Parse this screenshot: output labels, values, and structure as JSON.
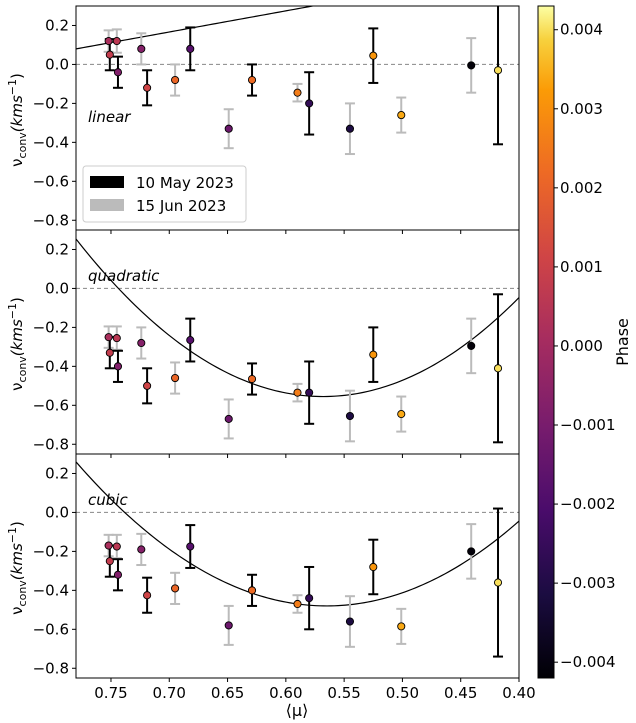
{
  "chart_data": {
    "type": "scatter",
    "x_axis": {
      "label": "⟨μ⟩",
      "range": [
        0.78,
        0.4
      ],
      "inverted": true,
      "ticks": [
        0.75,
        0.7,
        0.65,
        0.6,
        0.55,
        0.5,
        0.45,
        0.4
      ],
      "tick_labels": [
        "0.75",
        "0.70",
        "0.65",
        "0.60",
        "0.55",
        "0.50",
        "0.45",
        "0.40"
      ]
    },
    "y_axis": {
      "label_main": "ν",
      "label_sub": "conv",
      "label_unit": "(kms",
      "label_exp": "−1",
      "label_close": ")",
      "range": [
        -0.85,
        0.3
      ],
      "ticks": [
        0.2,
        0.0,
        -0.2,
        -0.4,
        -0.6,
        -0.8
      ],
      "tick_labels": [
        "0.2",
        "0.0",
        "−0.2",
        "−0.4",
        "−0.6",
        "−0.8"
      ]
    },
    "legend": {
      "placement": "lower-left of top panel",
      "entries": [
        {
          "label": "10 May 2023",
          "color": "#000000"
        },
        {
          "label": "15 Jun 2023",
          "color": "#bbbbbb"
        }
      ]
    },
    "colorbar": {
      "label": "Phase",
      "colormap": "inferno",
      "range": [
        -0.0042,
        0.0043
      ],
      "ticks": [
        0.004,
        0.003,
        0.002,
        0.001,
        0.0,
        -0.001,
        -0.002,
        -0.003,
        -0.004
      ],
      "tick_labels": [
        "0.004",
        "0.003",
        "0.002",
        "0.001",
        "0.000",
        "−0.001",
        "−0.002",
        "−0.003",
        "−0.004"
      ]
    },
    "reference_line_y": 0.0,
    "panels": [
      {
        "name": "linear",
        "fit": {
          "kind": "linear",
          "coeffs": [
            -1.085,
            0.926
          ]
        },
        "points": [
          {
            "x": 0.752,
            "y": 0.12,
            "err": 0.055,
            "phase": 0.0002,
            "epoch": "15 Jun 2023"
          },
          {
            "x": 0.751,
            "y": 0.05,
            "err": 0.08,
            "phase": 0.0008,
            "epoch": "10 May 2023"
          },
          {
            "x": 0.745,
            "y": 0.12,
            "err": 0.06,
            "phase": 0.0006,
            "epoch": "15 Jun 2023"
          },
          {
            "x": 0.744,
            "y": -0.04,
            "err": 0.08,
            "phase": -0.0008,
            "epoch": "10 May 2023"
          },
          {
            "x": 0.724,
            "y": 0.08,
            "err": 0.08,
            "phase": -0.0007,
            "epoch": "15 Jun 2023"
          },
          {
            "x": 0.719,
            "y": -0.12,
            "err": 0.09,
            "phase": 0.0011,
            "epoch": "10 May 2023"
          },
          {
            "x": 0.695,
            "y": -0.08,
            "err": 0.08,
            "phase": 0.0021,
            "epoch": "15 Jun 2023"
          },
          {
            "x": 0.682,
            "y": 0.08,
            "err": 0.11,
            "phase": -0.0018,
            "epoch": "10 May 2023"
          },
          {
            "x": 0.649,
            "y": -0.33,
            "err": 0.1,
            "phase": -0.0013,
            "epoch": "15 Jun 2023"
          },
          {
            "x": 0.629,
            "y": -0.08,
            "err": 0.08,
            "phase": 0.0022,
            "epoch": "10 May 2023"
          },
          {
            "x": 0.59,
            "y": -0.145,
            "err": 0.045,
            "phase": 0.0026,
            "epoch": "15 Jun 2023"
          },
          {
            "x": 0.58,
            "y": -0.2,
            "err": 0.16,
            "phase": -0.0026,
            "epoch": "10 May 2023"
          },
          {
            "x": 0.545,
            "y": -0.33,
            "err": 0.13,
            "phase": -0.0031,
            "epoch": "15 Jun 2023"
          },
          {
            "x": 0.525,
            "y": 0.045,
            "err": 0.14,
            "phase": 0.0031,
            "epoch": "10 May 2023"
          },
          {
            "x": 0.501,
            "y": -0.26,
            "err": 0.09,
            "phase": 0.0034,
            "epoch": "15 Jun 2023"
          },
          {
            "x": 0.441,
            "y": -0.005,
            "err": 0.14,
            "phase": -0.0041,
            "epoch": "15 Jun 2023"
          },
          {
            "x": 0.418,
            "y": -0.03,
            "err": 0.38,
            "phase": 0.004,
            "epoch": "10 May 2023"
          }
        ]
      },
      {
        "name": "quadratic",
        "fit": {
          "kind": "quadratic",
          "vertex_x": 0.568,
          "vertex_y": -0.555,
          "a": 18.0
        },
        "points": [
          {
            "x": 0.752,
            "y": -0.25,
            "err": 0.055,
            "phase": 0.0002,
            "epoch": "15 Jun 2023"
          },
          {
            "x": 0.751,
            "y": -0.33,
            "err": 0.08,
            "phase": 0.0008,
            "epoch": "10 May 2023"
          },
          {
            "x": 0.745,
            "y": -0.255,
            "err": 0.06,
            "phase": 0.0006,
            "epoch": "15 Jun 2023"
          },
          {
            "x": 0.744,
            "y": -0.4,
            "err": 0.08,
            "phase": -0.0008,
            "epoch": "10 May 2023"
          },
          {
            "x": 0.724,
            "y": -0.28,
            "err": 0.08,
            "phase": -0.0007,
            "epoch": "15 Jun 2023"
          },
          {
            "x": 0.719,
            "y": -0.5,
            "err": 0.09,
            "phase": 0.0011,
            "epoch": "10 May 2023"
          },
          {
            "x": 0.695,
            "y": -0.46,
            "err": 0.08,
            "phase": 0.0021,
            "epoch": "15 Jun 2023"
          },
          {
            "x": 0.682,
            "y": -0.265,
            "err": 0.11,
            "phase": -0.0018,
            "epoch": "10 May 2023"
          },
          {
            "x": 0.649,
            "y": -0.67,
            "err": 0.1,
            "phase": -0.0013,
            "epoch": "15 Jun 2023"
          },
          {
            "x": 0.629,
            "y": -0.465,
            "err": 0.08,
            "phase": 0.0022,
            "epoch": "10 May 2023"
          },
          {
            "x": 0.59,
            "y": -0.535,
            "err": 0.045,
            "phase": 0.0026,
            "epoch": "15 Jun 2023"
          },
          {
            "x": 0.58,
            "y": -0.535,
            "err": 0.16,
            "phase": -0.0026,
            "epoch": "10 May 2023"
          },
          {
            "x": 0.545,
            "y": -0.655,
            "err": 0.13,
            "phase": -0.0031,
            "epoch": "15 Jun 2023"
          },
          {
            "x": 0.525,
            "y": -0.34,
            "err": 0.14,
            "phase": 0.0031,
            "epoch": "10 May 2023"
          },
          {
            "x": 0.501,
            "y": -0.645,
            "err": 0.09,
            "phase": 0.0034,
            "epoch": "15 Jun 2023"
          },
          {
            "x": 0.441,
            "y": -0.295,
            "err": 0.14,
            "phase": -0.0041,
            "epoch": "15 Jun 2023"
          },
          {
            "x": 0.418,
            "y": -0.41,
            "err": 0.38,
            "phase": 0.004,
            "epoch": "10 May 2023"
          }
        ]
      },
      {
        "name": "cubic",
        "fit": {
          "kind": "quadratic",
          "vertex_x": 0.565,
          "vertex_y": -0.48,
          "a": 16.0
        },
        "points": [
          {
            "x": 0.752,
            "y": -0.17,
            "err": 0.055,
            "phase": 0.0002,
            "epoch": "15 Jun 2023"
          },
          {
            "x": 0.751,
            "y": -0.25,
            "err": 0.08,
            "phase": 0.0008,
            "epoch": "10 May 2023"
          },
          {
            "x": 0.745,
            "y": -0.175,
            "err": 0.06,
            "phase": 0.0006,
            "epoch": "15 Jun 2023"
          },
          {
            "x": 0.744,
            "y": -0.32,
            "err": 0.08,
            "phase": -0.0008,
            "epoch": "10 May 2023"
          },
          {
            "x": 0.724,
            "y": -0.19,
            "err": 0.08,
            "phase": -0.0007,
            "epoch": "15 Jun 2023"
          },
          {
            "x": 0.719,
            "y": -0.425,
            "err": 0.09,
            "phase": 0.0011,
            "epoch": "10 May 2023"
          },
          {
            "x": 0.695,
            "y": -0.39,
            "err": 0.08,
            "phase": 0.0021,
            "epoch": "15 Jun 2023"
          },
          {
            "x": 0.682,
            "y": -0.175,
            "err": 0.11,
            "phase": -0.0018,
            "epoch": "10 May 2023"
          },
          {
            "x": 0.649,
            "y": -0.58,
            "err": 0.1,
            "phase": -0.0013,
            "epoch": "15 Jun 2023"
          },
          {
            "x": 0.629,
            "y": -0.4,
            "err": 0.08,
            "phase": 0.0022,
            "epoch": "10 May 2023"
          },
          {
            "x": 0.59,
            "y": -0.47,
            "err": 0.045,
            "phase": 0.0026,
            "epoch": "15 Jun 2023"
          },
          {
            "x": 0.58,
            "y": -0.44,
            "err": 0.16,
            "phase": -0.0026,
            "epoch": "10 May 2023"
          },
          {
            "x": 0.545,
            "y": -0.56,
            "err": 0.13,
            "phase": -0.0031,
            "epoch": "15 Jun 2023"
          },
          {
            "x": 0.525,
            "y": -0.28,
            "err": 0.14,
            "phase": 0.0031,
            "epoch": "10 May 2023"
          },
          {
            "x": 0.501,
            "y": -0.585,
            "err": 0.09,
            "phase": 0.0034,
            "epoch": "15 Jun 2023"
          },
          {
            "x": 0.441,
            "y": -0.2,
            "err": 0.14,
            "phase": -0.0041,
            "epoch": "15 Jun 2023"
          },
          {
            "x": 0.418,
            "y": -0.36,
            "err": 0.38,
            "phase": 0.004,
            "epoch": "10 May 2023"
          }
        ]
      }
    ]
  }
}
